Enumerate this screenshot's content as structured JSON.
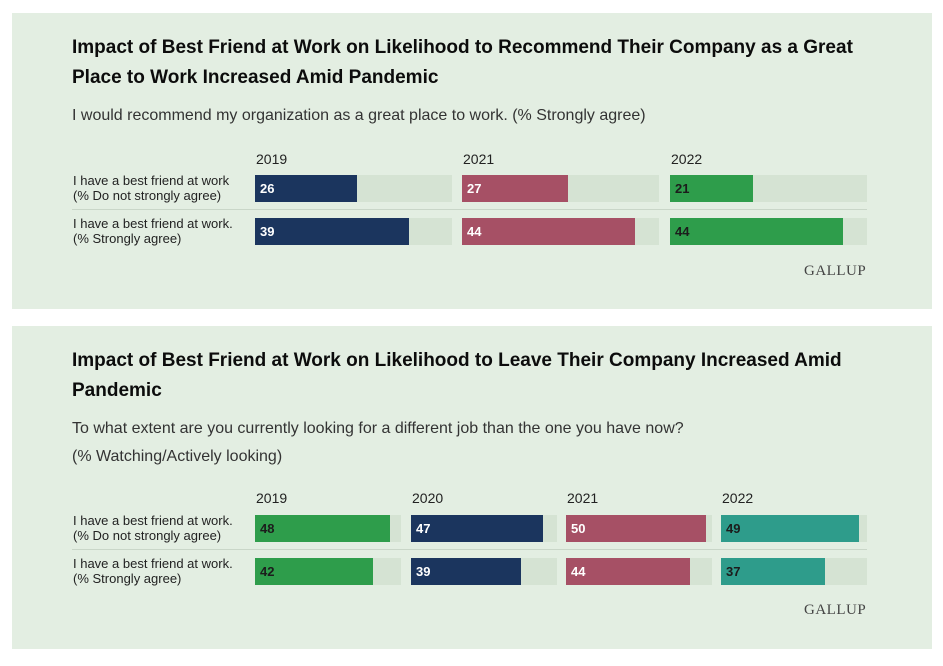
{
  "brand": "GALLUP",
  "colors": {
    "background": "#ffffff",
    "panel": "#e3eee2",
    "track": "#d5e3d3",
    "navy": "#1b355e",
    "rose": "#a65065",
    "green": "#2e9d4b",
    "teal": "#2e9c8b"
  },
  "chart_data": [
    {
      "type": "bar",
      "orientation": "horizontal",
      "title": "Impact of Best Friend at Work on Likelihood to Recommend Their Company as a Great Place to Work Increased Amid Pandemic",
      "subtitle": "I would recommend my organization as a great place to work. (% Strongly agree)",
      "subtitle2": "",
      "categories": [
        "I have a best friend at work\n(% Do not strongly agree)",
        "I have a best friend at work.\n(% Strongly agree)"
      ],
      "xlim": [
        0,
        50
      ],
      "series": [
        {
          "name": "2019",
          "color": "#1b355e",
          "label_color": "#ffffff",
          "values": [
            26,
            39
          ]
        },
        {
          "name": "2021",
          "color": "#a65065",
          "label_color": "#ffffff",
          "values": [
            27,
            44
          ]
        },
        {
          "name": "2022",
          "color": "#2e9d4b",
          "label_color": "#1c1c1c",
          "values": [
            21,
            44
          ]
        }
      ]
    },
    {
      "type": "bar",
      "orientation": "horizontal",
      "title": "Impact of Best Friend at Work on Likelihood to Leave Their Company Increased Amid Pandemic",
      "subtitle": "To what extent are you currently looking for a different job than the one you have now?",
      "subtitle2": "(% Watching/Actively looking)",
      "categories": [
        "I have a best friend at work.\n(% Do not strongly agree)",
        "I have a best friend at work.\n(% Strongly agree)"
      ],
      "xlim": [
        0,
        52
      ],
      "series": [
        {
          "name": "2019",
          "color": "#2e9d4b",
          "label_color": "#1c1c1c",
          "values": [
            48,
            42
          ]
        },
        {
          "name": "2020",
          "color": "#1b355e",
          "label_color": "#ffffff",
          "values": [
            47,
            39
          ]
        },
        {
          "name": "2021",
          "color": "#a65065",
          "label_color": "#ffffff",
          "values": [
            50,
            44
          ]
        },
        {
          "name": "2022",
          "color": "#2e9c8b",
          "label_color": "#1c1c1c",
          "values": [
            49,
            37
          ]
        }
      ]
    }
  ]
}
